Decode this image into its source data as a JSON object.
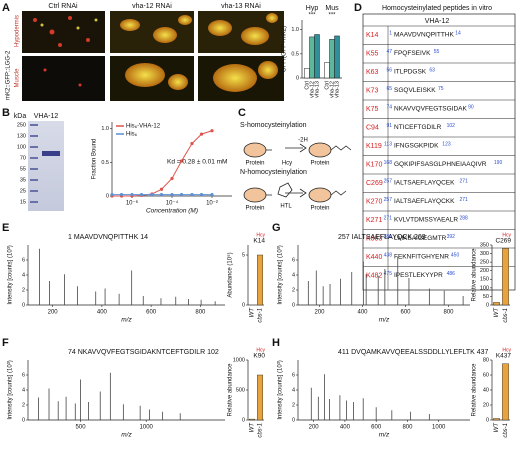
{
  "panel_labels": [
    "A",
    "B",
    "C",
    "D",
    "E",
    "F",
    "G",
    "H"
  ],
  "panel_a": {
    "columns": [
      "Ctrl RNAi",
      "vha-12 RNAi",
      "vha-13 RNAi"
    ],
    "rows": [
      "Hypodermis",
      "Muscle"
    ],
    "reporter": "mK2::GFP::LGG-2"
  },
  "panel_b": {
    "unit": "kDa",
    "lane": "VHA-12",
    "markers": [
      250,
      130,
      100,
      70,
      55,
      35,
      25,
      15
    ]
  },
  "panel_c": {
    "top_title": "S-homocysteinylation",
    "bottom_title": "N-homocysteinylation",
    "protein": "Protein",
    "reaction": "-2H",
    "hcy": "Hcy",
    "htl": "HTL"
  },
  "panel_d": {
    "title": "Homocysteinylated peptides in vitro",
    "protein": "VHA-12",
    "rows": [
      [
        "K14",
        1,
        "MAAVDVNQPITTHK",
        14
      ],
      [
        "K55",
        47,
        "FPQFSEIVK",
        55
      ],
      [
        "K63",
        56,
        "ITLPDGSK",
        63
      ],
      [
        "K73",
        65,
        "SGQVLEISKK",
        75
      ],
      [
        "K75",
        74,
        "NKAVVQVFEGTSGIDAK",
        90
      ],
      [
        "C94",
        91,
        "NTICEFTGDILR",
        102
      ],
      [
        "K119",
        113,
        "IFNGSGKPIDK",
        123
      ],
      [
        "K170",
        168,
        "GQKIPIFSASGLPHNEIAAQIVR",
        190
      ],
      [
        "C269",
        257,
        "IALTSAEFLAYQCEK",
        271
      ],
      [
        "K270",
        257,
        "IALTSAEFLAYQCKK",
        271
      ],
      [
        "K271",
        271,
        "KVLVTDMSSYAEALR",
        288
      ],
      [
        "K383",
        381,
        "LMKSAIGEGMTR",
        392
      ],
      [
        "K440",
        438,
        "FEKNFITGHYENR",
        450
      ],
      [
        "K482",
        475,
        "IPESTLEKYYPR",
        486
      ]
    ]
  },
  "chart_data": [
    {
      "type": "groupbar",
      "ylabel": "GFP/(GFP+mK2)",
      "categories": [
        "Hyp",
        "Mus"
      ],
      "annotations": [
        "***",
        "***"
      ],
      "ylim": [
        0,
        1.2
      ],
      "yticks": [
        0,
        0.5,
        {
          "value": 1,
          "label": "1.0"
        }
      ],
      "series": [
        {
          "name": "Ctrl",
          "color": "#ffffff",
          "values": [
            0.2,
            0.32
          ]
        },
        {
          "name": "vha-12",
          "color": "#5cb89a",
          "values": [
            0.85,
            0.8
          ]
        },
        {
          "name": "vha-13",
          "color": "#2f8f9a",
          "values": [
            0.9,
            0.87
          ]
        }
      ]
    },
    {
      "type": "line",
      "ylabel": "Fraction Bound",
      "xlabel": "Concentration (M)",
      "annotation": "Kd = 0.28 ± 0.01 mM",
      "xlog": true,
      "xlim": [
        1e-07,
        0.1
      ],
      "xticks": [
        {
          "value": 1e-06,
          "label": "10⁻⁶"
        },
        {
          "value": 0.0001,
          "label": "10⁻⁴"
        },
        {
          "value": 0.01,
          "label": "10⁻²"
        }
      ],
      "ylim": [
        0,
        1.1
      ],
      "yticks": [
        0,
        0.5,
        {
          "value": 1,
          "label": "1.0"
        }
      ],
      "x": [
        1e-07,
        3e-07,
        1e-06,
        3e-06,
        1e-05,
        3e-05,
        0.0001,
        0.0003,
        0.001,
        0.003,
        0.01
      ],
      "series": [
        {
          "name": "His₆-VHA-12",
          "color": "#e0524a",
          "values": [
            0,
            0,
            0,
            0.01,
            0.03,
            0.1,
            0.26,
            0.52,
            0.78,
            0.92,
            0.97
          ]
        },
        {
          "name": "His₆",
          "color": "#5b8fd6",
          "values": [
            0.02,
            0.02,
            0.02,
            0.02,
            0.02,
            0.02,
            0.02,
            0.02,
            0.02,
            0.02,
            0.02
          ]
        }
      ]
    },
    {
      "type": "spectrum",
      "peptide": "1 MAAVDVNQPITTHK 14",
      "ylabel": "Intensity [counts] (10³)",
      "xlabel": "m/z",
      "xlim": [
        100,
        900
      ],
      "xticks": [
        200,
        400,
        600,
        800
      ],
      "ylim": [
        0,
        8
      ],
      "yticks": [
        0,
        2,
        4,
        6
      ],
      "color": "#444444",
      "x": [
        147,
        187,
        248,
        301,
        375,
        413,
        470,
        521,
        568,
        640,
        700,
        752,
        803,
        860
      ],
      "values": [
        7.5,
        3.2,
        4.1,
        2.5,
        1.8,
        2.2,
        1.5,
        4.6,
        1.2,
        0.9,
        1.1,
        0.8,
        0.7,
        0.5
      ]
    },
    {
      "type": "spectrum",
      "peptide": "74 NKAVVQVFEGTSGIDAKNTCEFTGDILR 102",
      "ylabel": "Intensity [counts] (10³)",
      "xlabel": "m/z",
      "xlim": [
        100,
        1600
      ],
      "xticks": [
        500,
        1000
      ],
      "ylim": [
        0,
        8
      ],
      "yticks": [
        0,
        2,
        4,
        6
      ],
      "color": "#444444",
      "x": [
        180,
        260,
        330,
        390,
        460,
        499,
        560,
        650,
        727,
        826,
        954,
        1025,
        1125,
        1259
      ],
      "values": [
        3,
        4.2,
        2.5,
        3.1,
        2.2,
        5.4,
        2.4,
        3.8,
        6.3,
        2.1,
        1.9,
        1.4,
        1.1,
        0.9
      ]
    },
    {
      "type": "spectrum",
      "peptide": "257 IALTSAEFLAYQCK 269",
      "ylabel": "Intensity [counts] (10³)",
      "xlabel": "m/z",
      "xlim": [
        100,
        900
      ],
      "xticks": [
        200,
        400,
        600,
        800
      ],
      "ylim": [
        0,
        8
      ],
      "yticks": [
        0,
        2,
        4,
        6
      ],
      "color": "#444444",
      "x": [
        148,
        185,
        217,
        249,
        298,
        350,
        404,
        417,
        473,
        504,
        564,
        616,
        711,
        780,
        868
      ],
      "values": [
        3.2,
        4.6,
        2.5,
        2.8,
        3.5,
        4.4,
        5.8,
        4.1,
        3.9,
        4.8,
        6.4,
        3.6,
        2.2,
        1.9,
        1.2
      ]
    },
    {
      "type": "spectrum",
      "peptide": "411 DVQAMKAVVQEEALSSDDLLYLEFLTK 437",
      "ylabel": "Intensity [counts] (10³)",
      "xlabel": "m/z",
      "xlim": [
        100,
        1200
      ],
      "xticks": [
        200,
        400,
        600,
        800,
        1000
      ],
      "ylim": [
        0,
        8
      ],
      "yticks": [
        0,
        2,
        4,
        6
      ],
      "color": "#444444",
      "x": [
        185,
        230,
        270,
        302,
        368,
        410,
        455,
        517,
        600,
        700,
        820,
        940
      ],
      "values": [
        4.3,
        3.1,
        6.1,
        2.8,
        3.3,
        2.6,
        2.4,
        2.9,
        1.7,
        1.3,
        1.1,
        0.8
      ]
    },
    {
      "type": "bar",
      "title": "K14",
      "subtitle": "Hcy",
      "ylabel": "Abundance (10⁵)",
      "categories": [
        "WT",
        "cbs-1"
      ],
      "values": [
        0,
        5
      ],
      "color": "#e8a33c",
      "ylim": [
        0,
        6
      ],
      "yticks": [
        0,
        5
      ]
    },
    {
      "type": "bar",
      "title": "K90",
      "subtitle": "Hcy",
      "ylabel": "Relative abundance",
      "categories": [
        "WT",
        "cbs-1"
      ],
      "values": [
        15,
        750
      ],
      "color": "#e8a33c",
      "ylim": [
        0,
        1000
      ],
      "yticks": [
        0,
        500,
        1000
      ]
    },
    {
      "type": "bar",
      "title": "C269",
      "subtitle": "Hcy",
      "ylabel": "Relative abundance",
      "categories": [
        "WT",
        "cbs-1"
      ],
      "values": [
        15,
        330
      ],
      "color": "#e8a33c",
      "ylim": [
        0,
        350
      ],
      "yticks": [
        0,
        50,
        100,
        150,
        200,
        250,
        300,
        350
      ]
    },
    {
      "type": "bar",
      "title": "K437",
      "subtitle": "Hcy",
      "ylabel": "Relative abundance",
      "categories": [
        "WT",
        "cbs-1"
      ],
      "values": [
        2,
        75
      ],
      "color": "#e8a33c",
      "ylim": [
        0,
        80
      ],
      "yticks": [
        0,
        20,
        40,
        60,
        80
      ]
    }
  ]
}
